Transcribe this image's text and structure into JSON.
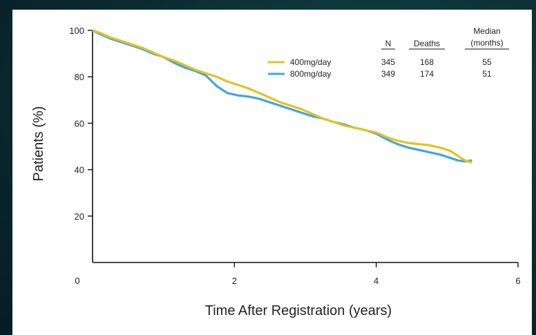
{
  "chart_data": {
    "type": "line",
    "title": "",
    "xlabel": "Time After Registration (years)",
    "ylabel": "Patients (%)",
    "xlim": [
      0,
      6
    ],
    "ylim": [
      0,
      100
    ],
    "x_ticks": [
      0,
      2,
      4,
      6
    ],
    "y_ticks": [
      20,
      40,
      60,
      80,
      100
    ],
    "grid": false,
    "legend": {
      "placement": "top-right",
      "columns": [
        "N",
        "Deaths",
        "Median (months)"
      ],
      "column_header_n": "N",
      "column_header_deaths": "Deaths",
      "column_header_median_line1": "Median",
      "column_header_median_line2": "(months)"
    },
    "series": [
      {
        "name": "400mg/day",
        "color": "#e3c21e",
        "N": "345",
        "deaths": "168",
        "median": "55",
        "x": [
          0,
          0.1,
          0.25,
          0.4,
          0.55,
          0.7,
          0.85,
          1.0,
          1.15,
          1.3,
          1.45,
          1.6,
          1.75,
          1.9,
          2.05,
          2.2,
          2.35,
          2.5,
          2.65,
          2.8,
          2.95,
          3.1,
          3.25,
          3.4,
          3.55,
          3.7,
          3.85,
          4.0,
          4.15,
          4.3,
          4.45,
          4.6,
          4.75,
          4.9,
          5.05,
          5.15,
          5.25,
          5.35
        ],
        "y": [
          100,
          99,
          97,
          95.5,
          94,
          92.5,
          90.5,
          88.5,
          87,
          85,
          83,
          81.5,
          80,
          78,
          76.5,
          75,
          73,
          71,
          69,
          67.5,
          66,
          64,
          62,
          60.5,
          59,
          58,
          57,
          56,
          54,
          52.5,
          51.5,
          51,
          50.5,
          49.5,
          48,
          46,
          44,
          43
        ]
      },
      {
        "name": "800mg/day",
        "color": "#3fa6e0",
        "N": "349",
        "deaths": "174",
        "median": "51",
        "x": [
          0,
          0.1,
          0.25,
          0.4,
          0.55,
          0.7,
          0.85,
          1.0,
          1.15,
          1.3,
          1.45,
          1.6,
          1.75,
          1.9,
          2.05,
          2.2,
          2.35,
          2.5,
          2.65,
          2.8,
          2.95,
          3.1,
          3.25,
          3.4,
          3.55,
          3.7,
          3.85,
          4.0,
          4.15,
          4.3,
          4.45,
          4.6,
          4.75,
          4.9,
          5.05,
          5.15,
          5.25,
          5.35
        ],
        "y": [
          100,
          98.5,
          96.5,
          95,
          93.5,
          92,
          90,
          88.5,
          86,
          84,
          82.5,
          80.5,
          76,
          73,
          72,
          71.5,
          70.5,
          69,
          67.5,
          66,
          64.5,
          63,
          62,
          60.5,
          59.5,
          58,
          57,
          55.5,
          53,
          51,
          49.5,
          48.5,
          47.5,
          46.5,
          45,
          44,
          43.5,
          44
        ]
      }
    ]
  }
}
